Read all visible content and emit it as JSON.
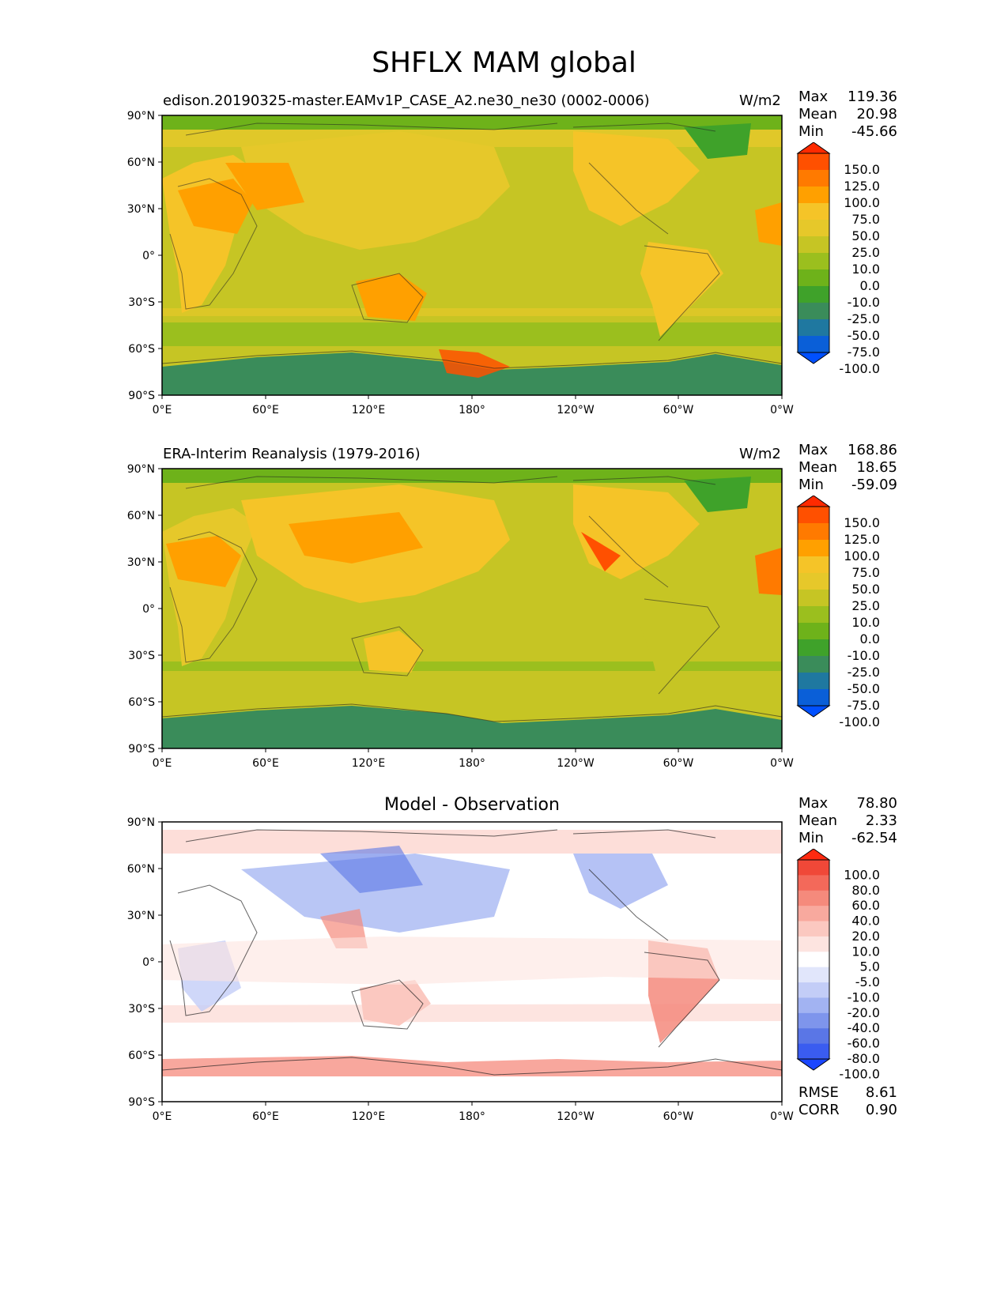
{
  "figure": {
    "title": "SHFLX MAM global"
  },
  "chart_data": [
    {
      "type": "heatmap",
      "panel": "model",
      "title": "edison.20190325-master.EAMv1P_CASE_A2.ne30_ne30 (0002-0006)",
      "units": "W/m2",
      "stats": {
        "max_label": "Max",
        "max": "119.36",
        "mean_label": "Mean",
        "mean": "20.98",
        "min_label": "Min",
        "min": "-45.66"
      },
      "xaxis": {
        "ticks": [
          "0°E",
          "60°E",
          "120°E",
          "180°",
          "120°W",
          "60°W",
          "0°W"
        ],
        "range": [
          0,
          360
        ]
      },
      "yaxis": {
        "ticks": [
          "90°N",
          "60°N",
          "30°N",
          "0°",
          "30°S",
          "60°S",
          "90°S"
        ],
        "range": [
          -90,
          90
        ]
      },
      "colorbar": {
        "levels": [
          "150.0",
          "125.0",
          "100.0",
          "75.0",
          "50.0",
          "25.0",
          "10.0",
          "0.0",
          "-10.0",
          "-25.0",
          "-50.0",
          "-75.0",
          "-100.0"
        ],
        "colors": [
          "#ff2a00",
          "#ff5000",
          "#ff7a00",
          "#ffa000",
          "#f5c428",
          "#e6c82a",
          "#c6c524",
          "#9bbf1e",
          "#6eb21a",
          "#3fa22a",
          "#3a8c5a",
          "#1f78a0",
          "#0a5fd8",
          "#0050ff"
        ]
      }
    },
    {
      "type": "heatmap",
      "panel": "observation",
      "title": "ERA-Interim Reanalysis (1979-2016)",
      "units": "W/m2",
      "stats": {
        "max_label": "Max",
        "max": "168.86",
        "mean_label": "Mean",
        "mean": "18.65",
        "min_label": "Min",
        "min": "-59.09"
      },
      "xaxis": {
        "ticks": [
          "0°E",
          "60°E",
          "120°E",
          "180°",
          "120°W",
          "60°W",
          "0°W"
        ],
        "range": [
          0,
          360
        ]
      },
      "yaxis": {
        "ticks": [
          "90°N",
          "60°N",
          "30°N",
          "0°",
          "30°S",
          "60°S",
          "90°S"
        ],
        "range": [
          -90,
          90
        ]
      },
      "colorbar": {
        "levels": [
          "150.0",
          "125.0",
          "100.0",
          "75.0",
          "50.0",
          "25.0",
          "10.0",
          "0.0",
          "-10.0",
          "-25.0",
          "-50.0",
          "-75.0",
          "-100.0"
        ],
        "colors": [
          "#ff2a00",
          "#ff5000",
          "#ff7a00",
          "#ffa000",
          "#f5c428",
          "#e6c82a",
          "#c6c524",
          "#9bbf1e",
          "#6eb21a",
          "#3fa22a",
          "#3a8c5a",
          "#1f78a0",
          "#0a5fd8",
          "#0050ff"
        ]
      }
    },
    {
      "type": "heatmap",
      "panel": "difference",
      "title": "Model - Observation",
      "stats": {
        "max_label": "Max",
        "max": "78.80",
        "mean_label": "Mean",
        "mean": "2.33",
        "min_label": "Min",
        "min": "-62.54"
      },
      "metrics": {
        "rmse_label": "RMSE",
        "rmse": "8.61",
        "corr_label": "CORR",
        "corr": "0.90"
      },
      "xaxis": {
        "ticks": [
          "0°E",
          "60°E",
          "120°E",
          "180°",
          "120°W",
          "60°W",
          "0°W"
        ],
        "range": [
          0,
          360
        ]
      },
      "yaxis": {
        "ticks": [
          "90°N",
          "60°N",
          "30°N",
          "0°",
          "30°S",
          "60°S",
          "90°S"
        ],
        "range": [
          -90,
          90
        ]
      },
      "colorbar": {
        "levels": [
          "100.0",
          "80.0",
          "60.0",
          "40.0",
          "20.0",
          "10.0",
          "5.0",
          "-5.0",
          "-10.0",
          "-20.0",
          "-40.0",
          "-60.0",
          "-80.0",
          "-100.0"
        ],
        "colors": [
          "#ff2a10",
          "#f04838",
          "#f3695a",
          "#f58a7c",
          "#f8a99e",
          "#fbc8c0",
          "#fde4e0",
          "#ffffff",
          "#e1e6fb",
          "#c3cdf7",
          "#a2b3f2",
          "#7e95ec",
          "#5a76e6",
          "#3a5cf0",
          "#1a46ff"
        ]
      }
    }
  ]
}
